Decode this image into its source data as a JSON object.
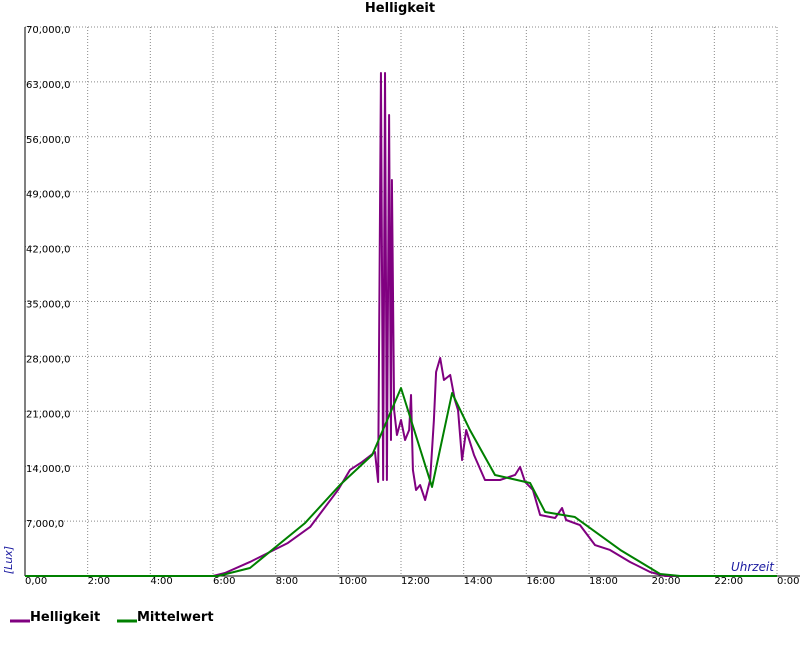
{
  "chart_data": {
    "type": "line",
    "title": "Helligkeit",
    "x_label": "Uhrzeit",
    "y_label": "[Lux]",
    "xlim": [
      0,
      24
    ],
    "ylim": [
      0,
      70000
    ],
    "xticks": [
      {
        "value": 0,
        "label": "0,00"
      },
      {
        "value": 2,
        "label": "2:00"
      },
      {
        "value": 4,
        "label": "4:00"
      },
      {
        "value": 6,
        "label": "6:00"
      },
      {
        "value": 8,
        "label": "8:00"
      },
      {
        "value": 10,
        "label": "10:00"
      },
      {
        "value": 12,
        "label": "12:00"
      },
      {
        "value": 14,
        "label": "14:00"
      },
      {
        "value": 16,
        "label": "16:00"
      },
      {
        "value": 18,
        "label": "18:00"
      },
      {
        "value": 20,
        "label": "20:00"
      },
      {
        "value": 22,
        "label": "22:00"
      },
      {
        "value": 24,
        "label": "0:00"
      }
    ],
    "yticks": [
      {
        "value": 7000,
        "label": "7,000,0"
      },
      {
        "value": 14000,
        "label": "14,000,0"
      },
      {
        "value": 21000,
        "label": "21,000,0"
      },
      {
        "value": 28000,
        "label": "28,000,0"
      },
      {
        "value": 35000,
        "label": "35,000,0"
      },
      {
        "value": 42000,
        "label": "42,000,0"
      },
      {
        "value": 49000,
        "label": "49,000,0"
      },
      {
        "value": 56000,
        "label": "56,000,0"
      },
      {
        "value": 63000,
        "label": "63,000,0"
      },
      {
        "value": 70000,
        "label": "70,000,0"
      }
    ],
    "grid": true,
    "series": [
      {
        "name": "Helligkeit",
        "color": "#800080",
        "x": [
          0,
          6.0,
          6.38,
          7.18,
          8.39,
          9.1,
          9.99,
          10.37,
          10.76,
          11.17,
          11.27,
          11.36,
          11.43,
          11.49,
          11.55,
          11.62,
          11.68,
          11.71,
          11.78,
          11.87,
          12.0,
          12.13,
          12.26,
          12.32,
          12.38,
          12.48,
          12.61,
          12.77,
          12.93,
          13.05,
          13.12,
          13.25,
          13.37,
          13.57,
          13.72,
          13.82,
          13.95,
          14.08,
          14.33,
          14.68,
          15.16,
          15.64,
          15.8,
          15.96,
          16.21,
          16.44,
          16.92,
          17.14,
          17.27,
          17.71,
          18.19,
          18.67,
          19.31,
          19.95,
          20.43,
          24
        ],
        "values": [
          0,
          0,
          380,
          1790,
          4210,
          6250,
          10970,
          13520,
          14540,
          15810,
          11990,
          64130,
          12240,
          64130,
          12240,
          58780,
          17340,
          50490,
          21160,
          17980,
          19890,
          17340,
          18620,
          23080,
          13520,
          10970,
          11600,
          9690,
          12240,
          19890,
          26010,
          27800,
          24990,
          25630,
          22440,
          21160,
          14790,
          18610,
          15430,
          12240,
          12240,
          12880,
          13900,
          11990,
          10970,
          7780,
          7400,
          8670,
          7140,
          6500,
          3950,
          3320,
          1790,
          510,
          0,
          0
        ]
      },
      {
        "name": "Mittelwert",
        "color": "#008000",
        "x": [
          0,
          6.16,
          7.18,
          8.94,
          10.05,
          11.08,
          12.0,
          12.99,
          13.63,
          14.2,
          15.0,
          16.12,
          16.6,
          17.55,
          19.0,
          20.27,
          20.91,
          24
        ],
        "values": [
          0,
          0,
          1020,
          6760,
          11600,
          15430,
          23970,
          11350,
          23330,
          18610,
          12880,
          11860,
          8160,
          7520,
          3320,
          260,
          0,
          0
        ]
      }
    ]
  }
}
